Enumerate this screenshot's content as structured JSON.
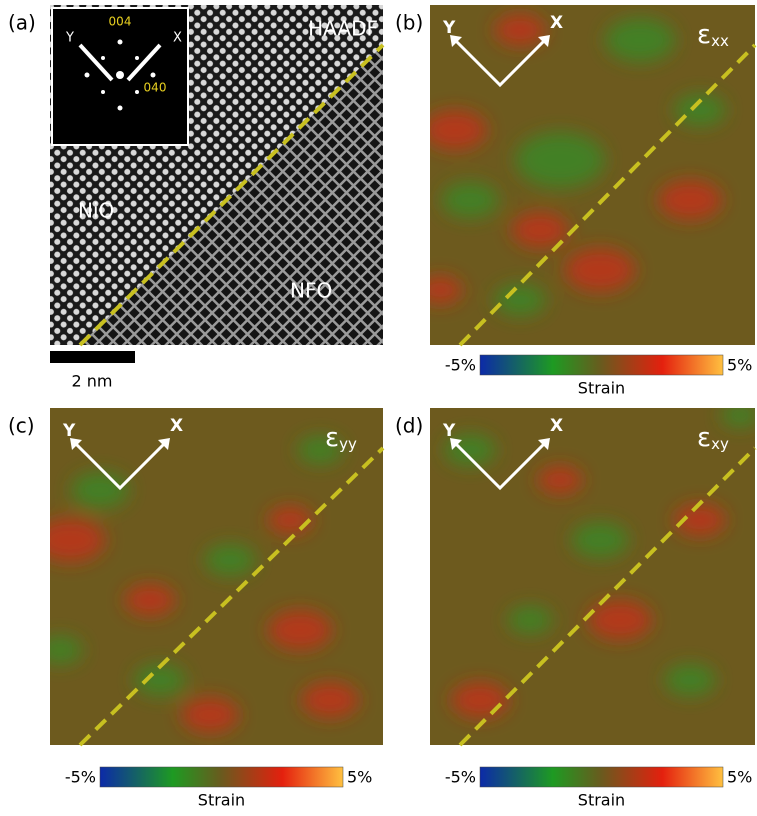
{
  "panels": [
    {
      "label": "(a)",
      "title": "HAADF",
      "inset": {
        "axis_y": "Y",
        "axis_x": "X",
        "spot_top": "004",
        "spot_right": "040"
      },
      "regions": [
        "NiO",
        "NFO"
      ],
      "scale_bar": "2 nm"
    },
    {
      "label": "(b)",
      "axis_y": "Y",
      "axis_x": "X",
      "symbol": "ε",
      "subscript": "xx",
      "colorbar": {
        "min_label": "-5%",
        "max_label": "5%",
        "title": "Strain"
      }
    },
    {
      "label": "(c)",
      "axis_y": "Y",
      "axis_x": "X",
      "symbol": "ε",
      "subscript": "yy",
      "colorbar": {
        "min_label": "-5%",
        "max_label": "5%",
        "title": "Strain"
      }
    },
    {
      "label": "(d)",
      "axis_y": "Y",
      "axis_x": "X",
      "symbol": "ε",
      "subscript": "xy",
      "colorbar": {
        "min_label": "-5%",
        "max_label": "5%",
        "title": "Strain"
      }
    }
  ]
}
